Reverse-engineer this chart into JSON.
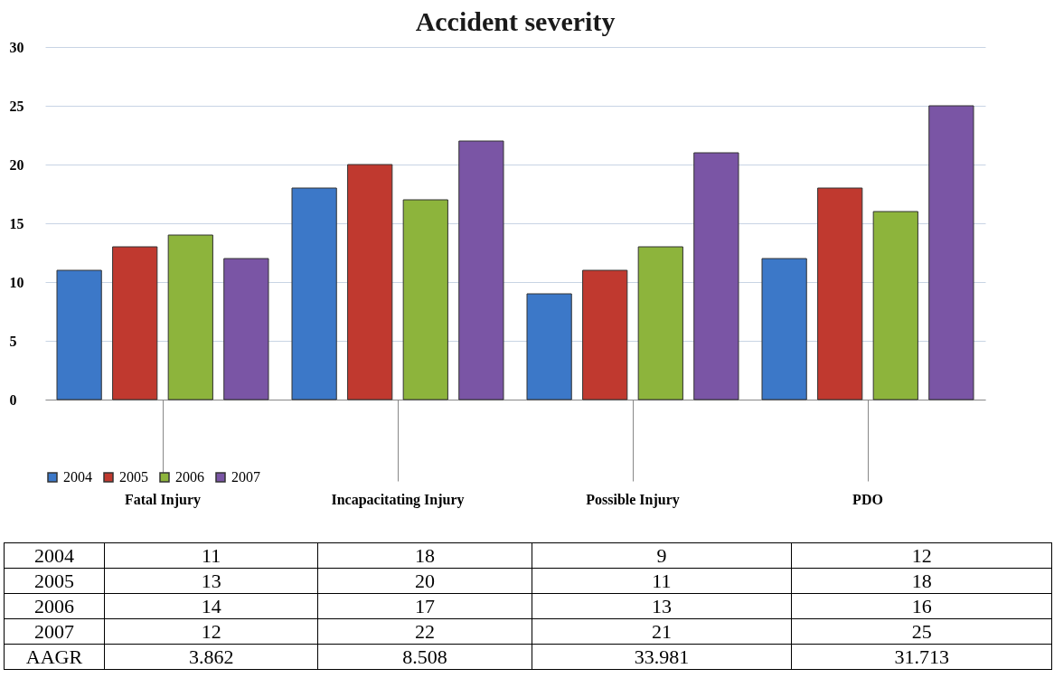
{
  "chart_data": {
    "type": "bar",
    "title": "Accident severity",
    "categories": [
      "Fatal Injury",
      "Incapacitating Injury",
      "Possible Injury",
      "PDO"
    ],
    "series": [
      {
        "name": "2004",
        "color": "#3c78c8",
        "values": [
          11,
          18,
          9,
          12
        ]
      },
      {
        "name": "2005",
        "color": "#c0392f",
        "values": [
          13,
          20,
          11,
          18
        ]
      },
      {
        "name": "2006",
        "color": "#8db43c",
        "values": [
          14,
          17,
          13,
          16
        ]
      },
      {
        "name": "2007",
        "color": "#7a55a5",
        "values": [
          12,
          22,
          21,
          25
        ]
      }
    ],
    "ylim": [
      0,
      30
    ],
    "yticks": [
      0,
      5,
      10,
      15,
      20,
      25,
      30
    ],
    "grid": "y",
    "legend": "bottom",
    "data_labels": true,
    "annotations": [
      "AAGR",
      "3.862",
      "8.508",
      "33.981",
      "31.713"
    ]
  }
}
